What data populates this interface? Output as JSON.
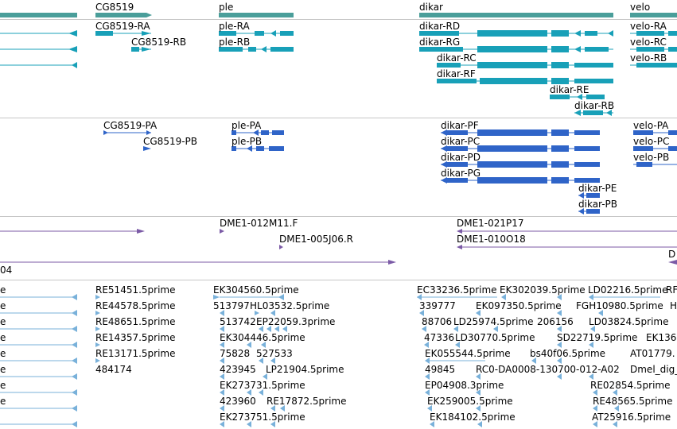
{
  "colors": {
    "gene": "#4a9e9a",
    "transcript": "#18a0b8",
    "protein": "#2f64c8",
    "clone": "#7b5aa6",
    "est": "#79b1da",
    "divider": "#c6c6c6"
  },
  "tracks": {
    "genes": {
      "labels": [
        "CG8519",
        "ple",
        "dikar",
        "velo"
      ]
    },
    "transcripts": {
      "labels": [
        "CG8519-RA",
        "CG8519-RB",
        "ple-RA",
        "ple-RB",
        "dikar-RD",
        "dikar-RG",
        "dikar-RC",
        "dikar-RF",
        "dikar-RE",
        "dikar-RB",
        "velo-RA",
        "velo-RC",
        "velo-RB"
      ]
    },
    "proteins": {
      "labels": [
        "CG8519-PA",
        "CG8519-PB",
        "ple-PA",
        "ple-PB",
        "dikar-PF",
        "dikar-PC",
        "dikar-PD",
        "dikar-PG",
        "dikar-PE",
        "dikar-PB",
        "velo-PA",
        "velo-PC",
        "velo-PB"
      ]
    },
    "clones": {
      "labels": [
        "DME1-012M11.F",
        "DME1-005J06.R",
        "DME1-021P17",
        "DME1-010O18",
        "04",
        "D"
      ]
    },
    "ests": {
      "labels": [
        "e",
        "e",
        "e",
        "e",
        "e",
        "e",
        "e",
        "e",
        "RE51451.5prime",
        "RE44578.5prime",
        "RE48651.5prime",
        "RE14357.5prime",
        "RE13171.5prime",
        "484174",
        "EK304560.5prime",
        "513797",
        "HL03532.5prime",
        "513742",
        "EP22059.3prime",
        "EK304446.5prime",
        "75828",
        "527533",
        "423945",
        "LP21904.5prime",
        "EK273731.5prime",
        "423960",
        "RE17872.5prime",
        "EK273751.5prime",
        "EC33236.5prime",
        "EK302039.5prime",
        "LD02216.5prime",
        "RF",
        "339777",
        "EK097350.5prime",
        "FGH10980.5prime",
        "H",
        "88706",
        "LD25974.5prime",
        "206156",
        "LD03824.5prime",
        "47336",
        "LD30770.5prime",
        "SD22719.5prime",
        "EK136",
        "EK055544.5prime",
        "bs40f06.5prime",
        "AT01779.",
        "49845",
        "RC0-DA0008-130700-012-A02",
        "Dmel_dig_",
        "EP04908.3prime",
        "RE02854.5prime",
        "EK259005.5prime",
        "RE48565.5prime",
        "EK184102.5prime",
        "AT25916.5prime"
      ]
    }
  }
}
